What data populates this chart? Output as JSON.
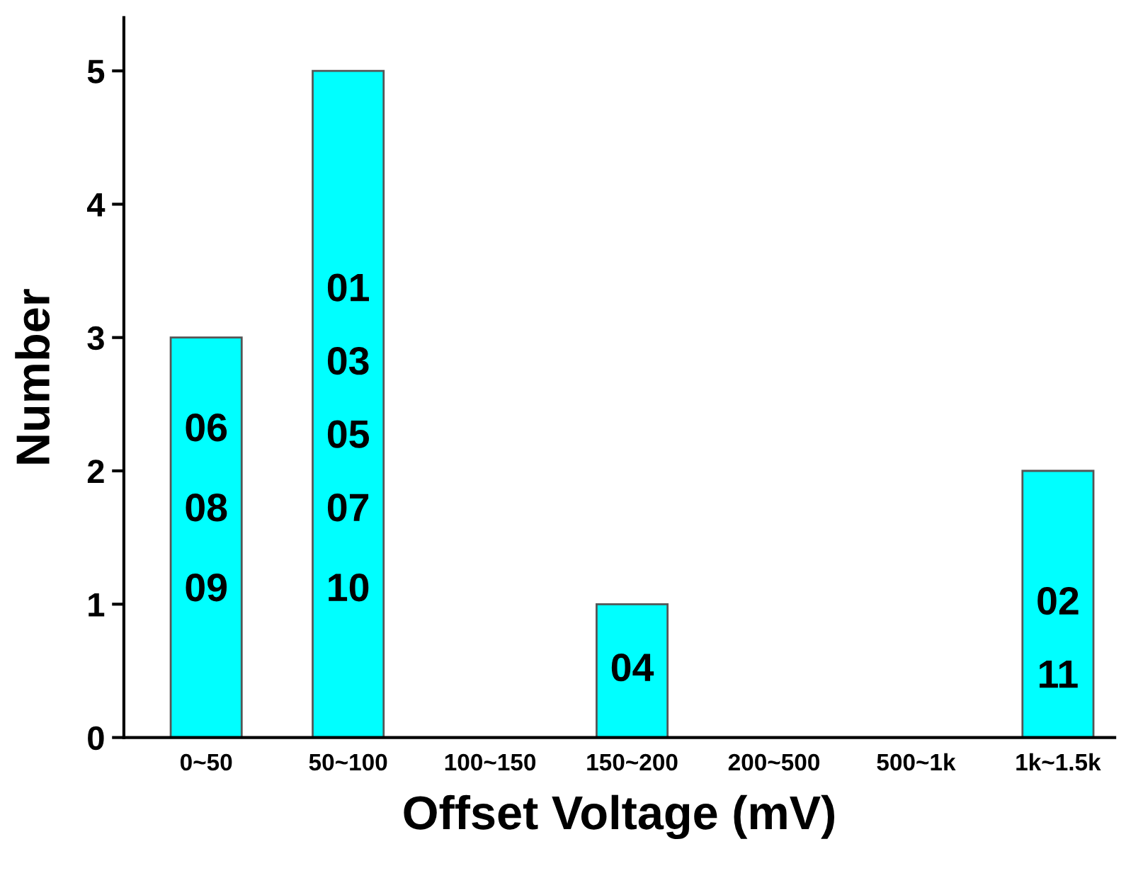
{
  "chart_data": {
    "type": "bar",
    "xlabel": "Offset Voltage (mV)",
    "ylabel": "Number",
    "categories": [
      "0~50",
      "50~100",
      "100~150",
      "150~200",
      "200~500",
      "500~1k",
      "1k~1.5k"
    ],
    "values": [
      3,
      5,
      0,
      1,
      0,
      0,
      2
    ],
    "color": "#00ffff",
    "ylim": [
      0,
      5.4
    ],
    "yticks": [
      0,
      1,
      2,
      3,
      4,
      5
    ],
    "grid": false,
    "annotations": [
      "06",
      "08",
      "09",
      "01",
      "03",
      "05",
      "07",
      "10",
      "04",
      "02",
      "11"
    ]
  }
}
